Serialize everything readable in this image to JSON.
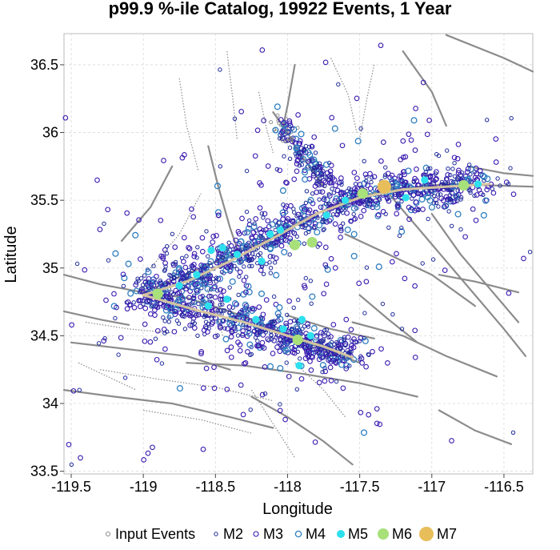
{
  "chart_data": {
    "type": "scatter",
    "title": "p99.9 %-ile Catalog, 19922 Events, 1 Year",
    "xlabel": "Longitude",
    "ylabel": "Latitude",
    "xlim": [
      -119.55,
      -116.3
    ],
    "ylim": [
      33.48,
      36.73
    ],
    "xticks": [
      -119.5,
      -119,
      -118.5,
      -118,
      -117.5,
      -117,
      -116.5
    ],
    "xtick_labels": [
      "-119.5",
      "-119",
      "-118.5",
      "-118",
      "-117.5",
      "-117",
      "-116.5"
    ],
    "yticks": [
      33.5,
      34,
      34.5,
      35,
      35.5,
      36,
      36.5
    ],
    "ytick_labels": [
      "33.5",
      "34",
      "34.5",
      "35",
      "35.5",
      "36",
      "36.5"
    ],
    "grid": true,
    "legend_position": "bottom",
    "legend": [
      "Input Events",
      "M2",
      "M3",
      "M4",
      "M5",
      "M6",
      "M7"
    ],
    "colors": {
      "input": "#888888",
      "M2": "#1e2a9a",
      "M3": "#3a1ab0",
      "M4": "#2f7fc0",
      "M5": "#2ee0ee",
      "M6": "#a8e07a",
      "M7": "#e8be5a",
      "fault": "#8c8c8c",
      "rupture": "#d8c8a0"
    },
    "rupture_trace": [
      [
        -119.0,
        34.8
      ],
      [
        -118.7,
        34.9
      ],
      [
        -118.4,
        35.05
      ],
      [
        -118.1,
        35.22
      ],
      [
        -117.8,
        35.4
      ],
      [
        -117.5,
        35.52
      ],
      [
        -117.2,
        35.58
      ],
      [
        -116.9,
        35.6
      ],
      [
        -116.6,
        35.62
      ]
    ],
    "rupture_branch": [
      [
        -119.0,
        34.8
      ],
      [
        -118.6,
        34.68
      ],
      [
        -118.3,
        34.6
      ],
      [
        -118.0,
        34.5
      ],
      [
        -117.75,
        34.42
      ],
      [
        -117.55,
        34.34
      ]
    ],
    "large_events": [
      {
        "mag": 7,
        "x": -117.33,
        "y": 35.6
      },
      {
        "mag": 6,
        "x": -117.48,
        "y": 35.55
      },
      {
        "mag": 6,
        "x": -117.95,
        "y": 35.17
      },
      {
        "mag": 6,
        "x": -117.83,
        "y": 35.19
      },
      {
        "mag": 6,
        "x": -117.93,
        "y": 34.47
      },
      {
        "mag": 6,
        "x": -118.9,
        "y": 34.81
      },
      {
        "mag": 6,
        "x": -116.78,
        "y": 35.61
      },
      {
        "mag": 5,
        "x": -118.45,
        "y": 35.15
      },
      {
        "mag": 5,
        "x": -118.53,
        "y": 35.13
      },
      {
        "mag": 5,
        "x": -118.63,
        "y": 34.95
      },
      {
        "mag": 5,
        "x": -118.35,
        "y": 35.1
      },
      {
        "mag": 5,
        "x": -118.12,
        "y": 35.25
      },
      {
        "mag": 5,
        "x": -118.05,
        "y": 35.28
      },
      {
        "mag": 5,
        "x": -117.73,
        "y": 35.39
      },
      {
        "mag": 5,
        "x": -117.6,
        "y": 35.5
      },
      {
        "mag": 5,
        "x": -117.18,
        "y": 35.52
      },
      {
        "mag": 5,
        "x": -117.05,
        "y": 35.65
      },
      {
        "mag": 5,
        "x": -116.68,
        "y": 35.62
      },
      {
        "mag": 5,
        "x": -118.55,
        "y": 34.72
      },
      {
        "mag": 5,
        "x": -118.42,
        "y": 34.77
      },
      {
        "mag": 5,
        "x": -118.22,
        "y": 34.62
      },
      {
        "mag": 5,
        "x": -118.03,
        "y": 34.55
      },
      {
        "mag": 5,
        "x": -117.9,
        "y": 34.62
      },
      {
        "mag": 5,
        "x": -117.84,
        "y": 34.5
      },
      {
        "mag": 5,
        "x": -117.92,
        "y": 34.28
      },
      {
        "mag": 5,
        "x": -118.75,
        "y": 34.87
      },
      {
        "mag": 5,
        "x": -118.18,
        "y": 35.05
      }
    ]
  }
}
